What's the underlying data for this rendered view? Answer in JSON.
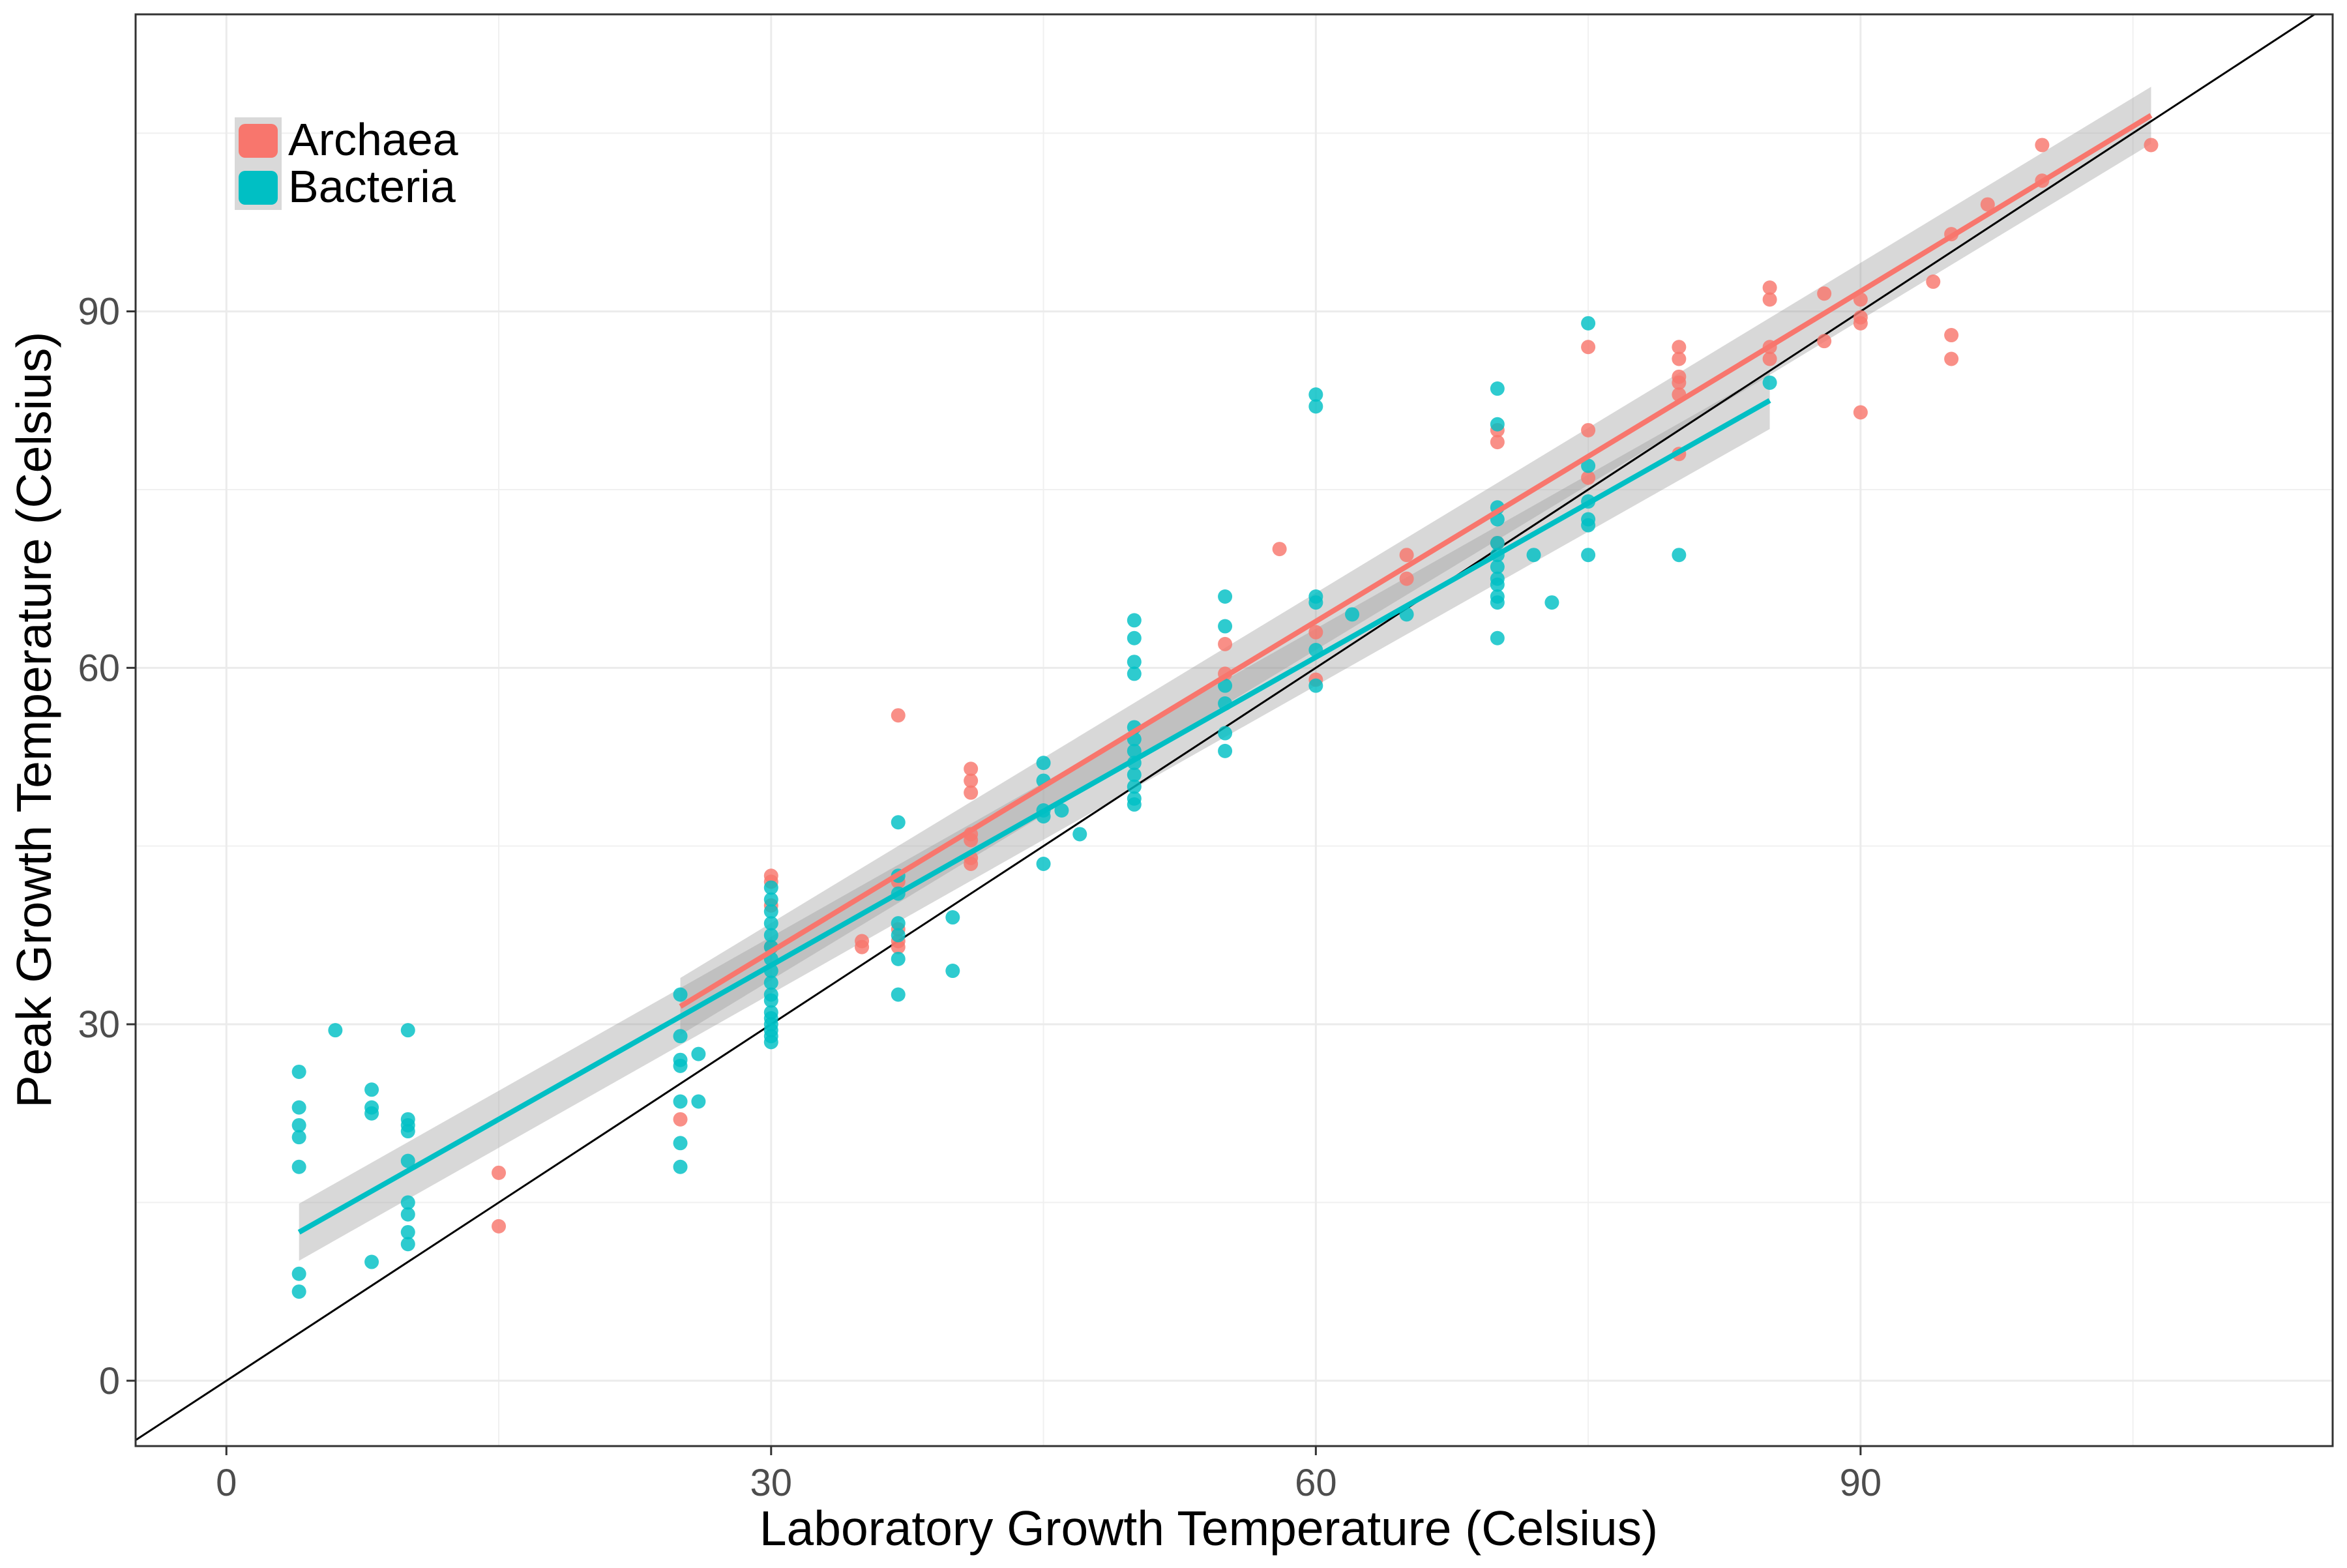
{
  "chart_data": {
    "type": "scatter",
    "title": "",
    "xlabel": "Laboratory Growth Temperature (Celsius)",
    "ylabel": "Peak Growth Temperature (Celsius)",
    "xlim": [
      -5,
      116
    ],
    "ylim": [
      -5.5,
      115
    ],
    "xticks": [
      0,
      30,
      60,
      90
    ],
    "yticks": [
      0,
      30,
      60,
      90
    ],
    "xtick_labels": [
      "0",
      "30",
      "60",
      "90"
    ],
    "ytick_labels": [
      "0",
      "30",
      "60",
      "90"
    ],
    "grid": true,
    "legend_position": "top-left",
    "reference_line": {
      "type": "identity",
      "color": "#000000"
    },
    "series": [
      {
        "name": "Archaea",
        "color": "#F8766D",
        "points": [
          [
            15,
            17.5
          ],
          [
            15,
            13
          ],
          [
            25,
            22
          ],
          [
            30,
            42.5
          ],
          [
            30,
            42
          ],
          [
            30,
            40
          ],
          [
            30,
            36.5
          ],
          [
            35,
            36.5
          ],
          [
            35,
            37
          ],
          [
            37,
            56
          ],
          [
            37,
            42
          ],
          [
            37,
            38
          ],
          [
            37,
            37
          ],
          [
            37,
            36.5
          ],
          [
            41,
            51.5
          ],
          [
            41,
            50.5
          ],
          [
            41,
            49.5
          ],
          [
            41,
            46
          ],
          [
            41,
            45.5
          ],
          [
            41,
            44
          ],
          [
            41,
            43.5
          ],
          [
            55,
            62
          ],
          [
            55,
            59.5
          ],
          [
            58,
            70
          ],
          [
            60,
            59
          ],
          [
            60,
            63
          ],
          [
            65,
            69.5
          ],
          [
            65,
            67.5
          ],
          [
            70,
            80
          ],
          [
            70,
            79
          ],
          [
            70,
            70.5
          ],
          [
            75,
            87
          ],
          [
            75,
            80
          ],
          [
            75,
            76
          ],
          [
            80,
            87
          ],
          [
            80,
            86
          ],
          [
            80,
            84.5
          ],
          [
            80,
            84
          ],
          [
            80,
            83
          ],
          [
            80,
            78
          ],
          [
            85,
            92
          ],
          [
            85,
            91
          ],
          [
            85,
            87
          ],
          [
            85,
            86
          ],
          [
            88,
            91.5
          ],
          [
            88,
            87.5
          ],
          [
            90,
            91
          ],
          [
            90,
            89.5
          ],
          [
            90,
            89
          ],
          [
            90,
            81.5
          ],
          [
            94,
            92.5
          ],
          [
            95,
            96.5
          ],
          [
            95,
            88
          ],
          [
            95,
            86
          ],
          [
            97,
            99
          ],
          [
            100,
            104
          ],
          [
            100,
            101
          ],
          [
            106,
            104
          ]
        ],
        "fit": {
          "x_range": [
            25,
            106
          ],
          "y_range": [
            31.5,
            106.5
          ],
          "band_halfwidth": 1.5
        }
      },
      {
        "name": "Bacteria",
        "color": "#00BFC4",
        "points": [
          [
            4,
            26
          ],
          [
            4,
            23
          ],
          [
            4,
            21.5
          ],
          [
            4,
            20.5
          ],
          [
            4,
            18
          ],
          [
            4,
            9
          ],
          [
            4,
            7.5
          ],
          [
            6,
            29.5
          ],
          [
            8,
            24.5
          ],
          [
            8,
            23
          ],
          [
            8,
            22.5
          ],
          [
            8,
            10
          ],
          [
            10,
            29.5
          ],
          [
            10,
            22
          ],
          [
            10,
            21.5
          ],
          [
            10,
            21
          ],
          [
            10,
            18.5
          ],
          [
            10,
            15
          ],
          [
            10,
            14
          ],
          [
            10,
            12.5
          ],
          [
            10,
            11.5
          ],
          [
            25,
            32.5
          ],
          [
            25,
            29
          ],
          [
            25,
            27
          ],
          [
            25,
            26.5
          ],
          [
            25,
            23.5
          ],
          [
            25,
            20
          ],
          [
            25,
            18
          ],
          [
            26,
            27.5
          ],
          [
            26,
            23.5
          ],
          [
            30,
            41.5
          ],
          [
            30,
            40.5
          ],
          [
            30,
            39.5
          ],
          [
            30,
            38.5
          ],
          [
            30,
            37.5
          ],
          [
            30,
            36.5
          ],
          [
            30,
            35.5
          ],
          [
            30,
            34.5
          ],
          [
            30,
            33.5
          ],
          [
            30,
            32.5
          ],
          [
            30,
            32
          ],
          [
            30,
            31
          ],
          [
            30,
            30.5
          ],
          [
            30,
            30
          ],
          [
            30,
            29.5
          ],
          [
            30,
            29
          ],
          [
            30,
            28.5
          ],
          [
            37,
            47
          ],
          [
            37,
            42.5
          ],
          [
            37,
            41
          ],
          [
            37,
            38.5
          ],
          [
            37,
            37.5
          ],
          [
            37,
            35.5
          ],
          [
            37,
            32.5
          ],
          [
            40,
            39
          ],
          [
            40,
            34.5
          ],
          [
            45,
            52
          ],
          [
            45,
            50.5
          ],
          [
            45,
            48
          ],
          [
            45,
            47.5
          ],
          [
            45,
            43.5
          ],
          [
            46,
            48
          ],
          [
            47,
            46
          ],
          [
            50,
            64
          ],
          [
            50,
            62.5
          ],
          [
            50,
            60.5
          ],
          [
            50,
            59.5
          ],
          [
            50,
            55
          ],
          [
            50,
            54
          ],
          [
            50,
            53
          ],
          [
            50,
            52
          ],
          [
            50,
            51
          ],
          [
            50,
            50
          ],
          [
            50,
            49
          ],
          [
            50,
            48.5
          ],
          [
            55,
            66
          ],
          [
            55,
            63.5
          ],
          [
            55,
            58.5
          ],
          [
            55,
            57
          ],
          [
            55,
            54.5
          ],
          [
            55,
            53
          ],
          [
            60,
            83
          ],
          [
            60,
            82
          ],
          [
            60,
            66
          ],
          [
            60,
            65.5
          ],
          [
            60,
            61.5
          ],
          [
            60,
            58.5
          ],
          [
            62,
            64.5
          ],
          [
            65,
            64.5
          ],
          [
            70,
            83.5
          ],
          [
            70,
            80.5
          ],
          [
            70,
            73.5
          ],
          [
            70,
            72.5
          ],
          [
            70,
            70.5
          ],
          [
            70,
            69.5
          ],
          [
            70,
            68.5
          ],
          [
            70,
            67.5
          ],
          [
            70,
            67
          ],
          [
            70,
            66
          ],
          [
            70,
            65.5
          ],
          [
            70,
            62.5
          ],
          [
            72,
            69.5
          ],
          [
            73,
            65.5
          ],
          [
            75,
            89
          ],
          [
            75,
            77
          ],
          [
            75,
            74
          ],
          [
            75,
            72.5
          ],
          [
            75,
            72
          ],
          [
            75,
            69.5
          ],
          [
            80,
            69.5
          ],
          [
            85,
            84
          ]
        ],
        "fit": {
          "x_range": [
            4,
            85
          ],
          "y_range": [
            12.5,
            82.5
          ],
          "band_halfwidth": 1.5
        }
      }
    ]
  }
}
